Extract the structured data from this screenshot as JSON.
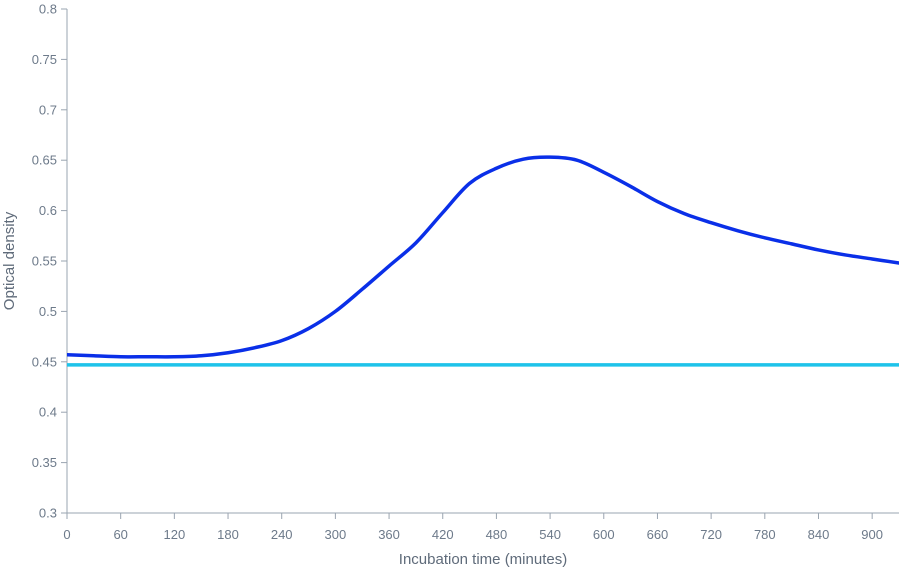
{
  "chart_data": {
    "type": "line",
    "title": "",
    "xlabel": "Incubation time (minutes)",
    "ylabel": "Optical density",
    "xlim": [
      0,
      930
    ],
    "ylim": [
      0.3,
      0.8
    ],
    "x_ticks": [
      0,
      60,
      120,
      180,
      240,
      300,
      360,
      420,
      480,
      540,
      600,
      660,
      720,
      780,
      840,
      900
    ],
    "y_ticks": [
      "0.3",
      "0.35",
      "0.4",
      "0.45",
      "0.5",
      "0.55",
      "0.6",
      "0.65",
      "0.7",
      "0.75",
      "0.8"
    ],
    "grid": false,
    "legend": "none",
    "series": [
      {
        "color": "#0a2fe8",
        "x": [
          0,
          30,
          60,
          90,
          120,
          150,
          180,
          210,
          240,
          270,
          300,
          330,
          360,
          390,
          420,
          450,
          480,
          510,
          540,
          570,
          600,
          630,
          660,
          690,
          720,
          750,
          780,
          810,
          840,
          870,
          900,
          930
        ],
        "y": [
          0.457,
          0.456,
          0.455,
          0.455,
          0.455,
          0.456,
          0.459,
          0.464,
          0.471,
          0.483,
          0.5,
          0.522,
          0.545,
          0.568,
          0.598,
          0.627,
          0.642,
          0.651,
          0.653,
          0.65,
          0.638,
          0.624,
          0.609,
          0.597,
          0.588,
          0.58,
          0.573,
          0.567,
          0.561,
          0.556,
          0.552,
          0.548
        ]
      },
      {
        "color": "#1ec3ea",
        "x": [
          0,
          930
        ],
        "y": [
          0.447,
          0.447
        ]
      }
    ]
  }
}
